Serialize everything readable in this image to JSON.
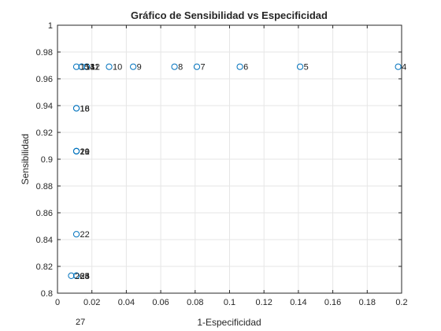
{
  "chart_data": {
    "type": "scatter",
    "title": "Gráfico de Sensibilidad vs Especificidad",
    "xlabel": "1-Especificidad",
    "ylabel": "Sensibilidad",
    "xlim": [
      0,
      0.2
    ],
    "ylim": [
      0.8,
      1
    ],
    "xticks": [
      "0",
      "0.02",
      "0.04",
      "0.06",
      "0.08",
      "0.1",
      "0.12",
      "0.14",
      "0.16",
      "0.18",
      "0.2"
    ],
    "yticks": [
      "0.8",
      "0.82",
      "0.84",
      "0.86",
      "0.88",
      "0.9",
      "0.92",
      "0.94",
      "0.96",
      "0.98",
      "1"
    ],
    "grid": true,
    "marker_color": "#0072bd",
    "points": [
      {
        "label": "4",
        "x": 0.198,
        "y": 0.969
      },
      {
        "label": "5",
        "x": 0.141,
        "y": 0.969
      },
      {
        "label": "6",
        "x": 0.106,
        "y": 0.969
      },
      {
        "label": "7",
        "x": 0.081,
        "y": 0.969
      },
      {
        "label": "8",
        "x": 0.068,
        "y": 0.969
      },
      {
        "label": "9",
        "x": 0.044,
        "y": 0.969
      },
      {
        "label": "10",
        "x": 0.03,
        "y": 0.969
      },
      {
        "label": "11",
        "x": 0.017,
        "y": 0.969
      },
      {
        "label": "12",
        "x": 0.017,
        "y": 0.969
      },
      {
        "label": "13",
        "x": 0.014,
        "y": 0.969
      },
      {
        "label": "14",
        "x": 0.014,
        "y": 0.969
      },
      {
        "label": "15",
        "x": 0.011,
        "y": 0.969
      },
      {
        "label": "16",
        "x": 0.011,
        "y": 0.938
      },
      {
        "label": "18",
        "x": 0.011,
        "y": 0.938
      },
      {
        "label": "19",
        "x": 0.011,
        "y": 0.906
      },
      {
        "label": "20",
        "x": 0.011,
        "y": 0.906
      },
      {
        "label": "21",
        "x": 0.011,
        "y": 0.906
      },
      {
        "label": "22",
        "x": 0.011,
        "y": 0.844
      },
      {
        "label": "23",
        "x": 0.011,
        "y": 0.813
      },
      {
        "label": "24",
        "x": 0.011,
        "y": 0.813
      },
      {
        "label": "25",
        "x": 0.011,
        "y": 0.813
      },
      {
        "label": "26",
        "x": 0.008,
        "y": 0.813
      }
    ],
    "outside_label": "27"
  }
}
